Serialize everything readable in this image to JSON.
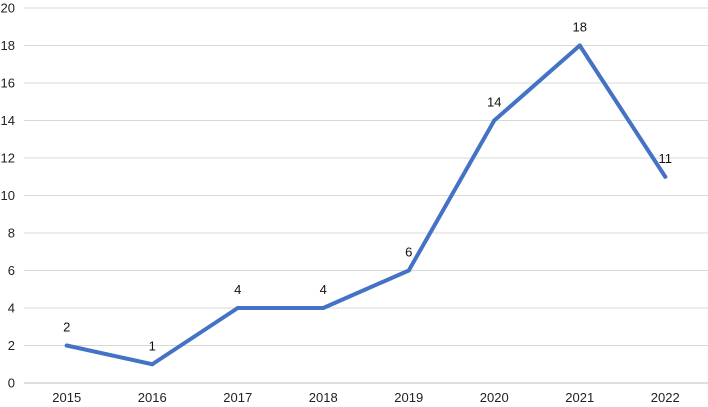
{
  "chart_data": {
    "type": "line",
    "title": "",
    "xlabel": "",
    "ylabel": "",
    "categories": [
      "2015",
      "2016",
      "2017",
      "2018",
      "2019",
      "2020",
      "2021",
      "2022"
    ],
    "series": [
      {
        "values": [
          2,
          1,
          4,
          4,
          6,
          14,
          18,
          11
        ],
        "color": "#4472c4"
      }
    ],
    "ylim": [
      0,
      20
    ],
    "yticks": [
      0,
      2,
      4,
      6,
      8,
      10,
      12,
      14,
      16,
      18,
      20
    ],
    "grid": true,
    "legend": "none",
    "data_labels": true
  }
}
